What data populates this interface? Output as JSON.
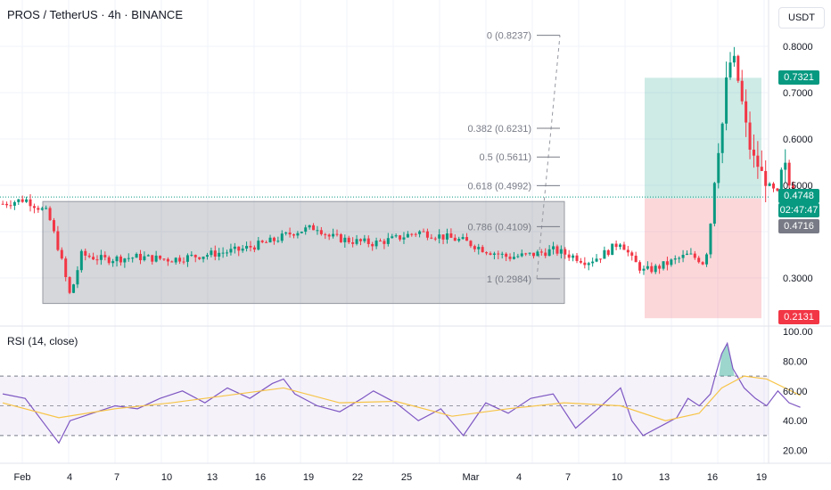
{
  "header": {
    "title": "PROS / TetherUS · 4h · BINANCE",
    "unit": "USDT"
  },
  "rsi": {
    "label": "RSI (14, close)"
  },
  "tags": {
    "target": {
      "text": "0.7321",
      "color": "#089981"
    },
    "price": {
      "text": "0.4748",
      "color": "#089981"
    },
    "countdown": {
      "text": "02:47:47",
      "color": "#089981"
    },
    "entry": {
      "text": "0.4716",
      "color": "#787b86"
    },
    "stop": {
      "text": "0.2131",
      "color": "#f23645"
    }
  },
  "chart_data": {
    "type": "candlestick",
    "x_ticks": [
      "Feb",
      "4",
      "7",
      "10",
      "13",
      "16",
      "19",
      "22",
      "25",
      "Mar",
      "4",
      "7",
      "10",
      "13",
      "16",
      "19"
    ],
    "y_ticks": [
      "0.8000",
      "0.7000",
      "0.6000",
      "0.5000",
      "0.3000"
    ],
    "rsi_ticks": [
      "100.00",
      "80.00",
      "60.00",
      "40.00",
      "20.00"
    ],
    "fib_levels": [
      {
        "label": "0 (0.8237)",
        "price": 0.8237
      },
      {
        "label": "0.382 (0.6231)",
        "price": 0.6231
      },
      {
        "label": "0.5 (0.5611)",
        "price": 0.5611
      },
      {
        "label": "0.618 (0.4992)",
        "price": 0.4992
      },
      {
        "label": "0.786 (0.4109)",
        "price": 0.4109
      },
      {
        "label": "1 (0.2984)",
        "price": 0.2984
      }
    ],
    "range_box": {
      "x_start": "Feb 2",
      "x_end": "Mar 7",
      "price_low": 0.245,
      "price_high": 0.465
    },
    "position": {
      "entry": 0.4716,
      "target": 0.7321,
      "stop": 0.2131
    },
    "last_price": 0.4748,
    "close_path": [
      [
        0,
        0.46
      ],
      [
        4,
        0.47
      ],
      [
        8,
        0.44
      ],
      [
        10,
        0.36
      ],
      [
        12,
        0.26
      ],
      [
        14,
        0.35
      ],
      [
        18,
        0.34
      ],
      [
        24,
        0.345
      ],
      [
        30,
        0.34
      ],
      [
        36,
        0.35
      ],
      [
        42,
        0.36
      ],
      [
        48,
        0.38
      ],
      [
        52,
        0.4
      ],
      [
        56,
        0.41
      ],
      [
        58,
        0.39
      ],
      [
        62,
        0.38
      ],
      [
        66,
        0.375
      ],
      [
        70,
        0.385
      ],
      [
        74,
        0.4
      ],
      [
        78,
        0.39
      ],
      [
        82,
        0.38
      ],
      [
        86,
        0.36
      ],
      [
        90,
        0.345
      ],
      [
        94,
        0.35
      ],
      [
        98,
        0.36
      ],
      [
        102,
        0.345
      ],
      [
        104,
        0.335
      ],
      [
        106,
        0.345
      ],
      [
        108,
        0.36
      ],
      [
        110,
        0.38
      ],
      [
        112,
        0.34
      ],
      [
        114,
        0.315
      ],
      [
        116,
        0.32
      ],
      [
        118,
        0.33
      ],
      [
        120,
        0.34
      ],
      [
        122,
        0.35
      ],
      [
        123,
        0.345
      ],
      [
        124,
        0.34
      ],
      [
        125,
        0.33
      ],
      [
        126,
        0.42
      ],
      [
        127,
        0.55
      ],
      [
        128,
        0.62
      ],
      [
        129,
        0.75
      ],
      [
        130,
        0.78
      ],
      [
        131,
        0.72
      ],
      [
        132,
        0.65
      ],
      [
        133,
        0.58
      ],
      [
        134,
        0.55
      ],
      [
        135,
        0.53
      ],
      [
        136,
        0.5
      ],
      [
        137,
        0.49
      ],
      [
        138,
        0.48
      ],
      [
        139,
        0.56
      ],
      [
        140,
        0.5
      ],
      [
        141,
        0.48
      ],
      [
        142,
        0.475
      ]
    ],
    "rsi_path": [
      [
        0,
        58
      ],
      [
        4,
        55
      ],
      [
        8,
        35
      ],
      [
        10,
        25
      ],
      [
        12,
        40
      ],
      [
        16,
        45
      ],
      [
        20,
        50
      ],
      [
        24,
        48
      ],
      [
        28,
        55
      ],
      [
        32,
        60
      ],
      [
        36,
        52
      ],
      [
        40,
        62
      ],
      [
        44,
        55
      ],
      [
        48,
        65
      ],
      [
        50,
        68
      ],
      [
        52,
        58
      ],
      [
        56,
        50
      ],
      [
        60,
        46
      ],
      [
        64,
        55
      ],
      [
        66,
        60
      ],
      [
        70,
        52
      ],
      [
        74,
        40
      ],
      [
        78,
        48
      ],
      [
        82,
        30
      ],
      [
        86,
        52
      ],
      [
        90,
        45
      ],
      [
        94,
        55
      ],
      [
        98,
        58
      ],
      [
        102,
        35
      ],
      [
        106,
        48
      ],
      [
        110,
        62
      ],
      [
        112,
        40
      ],
      [
        114,
        30
      ],
      [
        118,
        38
      ],
      [
        120,
        42
      ],
      [
        122,
        55
      ],
      [
        124,
        50
      ],
      [
        126,
        58
      ],
      [
        127,
        72
      ],
      [
        128,
        85
      ],
      [
        129,
        92
      ],
      [
        130,
        75
      ],
      [
        132,
        62
      ],
      [
        134,
        55
      ],
      [
        136,
        50
      ],
      [
        138,
        60
      ],
      [
        140,
        52
      ],
      [
        142,
        49
      ]
    ],
    "rsi_ma_path": [
      [
        0,
        52
      ],
      [
        10,
        42
      ],
      [
        20,
        48
      ],
      [
        30,
        52
      ],
      [
        40,
        57
      ],
      [
        50,
        62
      ],
      [
        60,
        52
      ],
      [
        70,
        53
      ],
      [
        80,
        43
      ],
      [
        90,
        48
      ],
      [
        100,
        52
      ],
      [
        110,
        50
      ],
      [
        118,
        40
      ],
      [
        124,
        45
      ],
      [
        128,
        62
      ],
      [
        132,
        70
      ],
      [
        136,
        68
      ],
      [
        142,
        57
      ]
    ]
  }
}
